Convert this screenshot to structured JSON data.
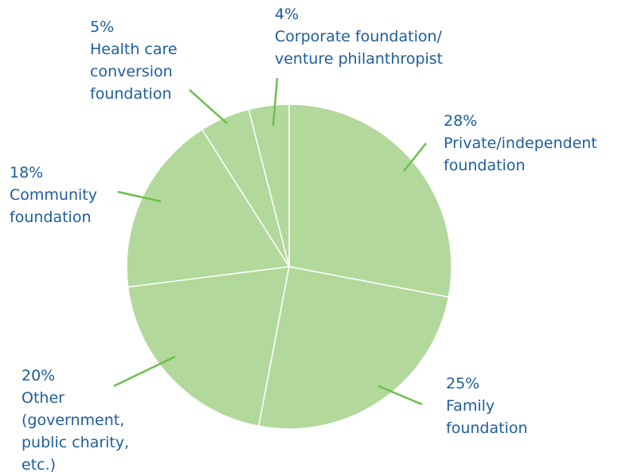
{
  "chart_data": {
    "type": "pie",
    "categories": [
      "Private/independent\nfoundation",
      "Family\nfoundation",
      "Other\n(government,\npublic charity,\netc.)",
      "Community\nfoundation",
      "Health care\nconversion\nfoundation",
      "Corporate foundation/\nventure philanthropist"
    ],
    "values": [
      28,
      25,
      20,
      18,
      5,
      4
    ],
    "value_labels": [
      "28%",
      "25%",
      "20%",
      "18%",
      "5%",
      "4%"
    ],
    "color": "#b2d99b"
  }
}
